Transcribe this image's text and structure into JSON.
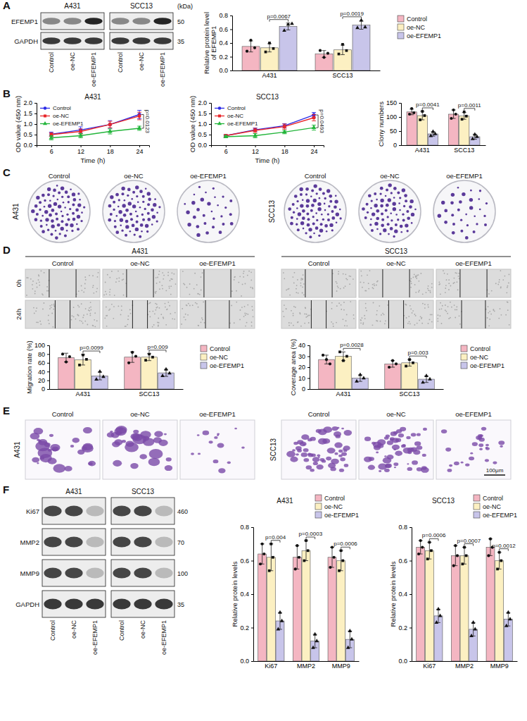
{
  "panel_labels": [
    "A",
    "B",
    "C",
    "D",
    "E",
    "F"
  ],
  "blot_A": {
    "cells": [
      "A431",
      "SCC13"
    ],
    "rows": [
      "EFEMP1",
      "GAPDH"
    ],
    "unit": "(kDa)",
    "markers": [
      50,
      35
    ],
    "lanes": [
      "Control",
      "oe-NC",
      "oe-EFEMP1"
    ]
  },
  "colony_C": {
    "cells": [
      "A431",
      "SCC13"
    ],
    "columns": [
      "Control",
      "oe-NC",
      "oe-EFEMP1"
    ]
  },
  "wound_D": {
    "cells": [
      "A431",
      "SCC13"
    ],
    "columns": [
      "Control",
      "oe-NC",
      "oe-EFEMP1"
    ],
    "rows": [
      "0h",
      "24h"
    ]
  },
  "transwell_E": {
    "cells": [
      "A431",
      "SCC13"
    ],
    "columns": [
      "Control",
      "oe-NC",
      "oe-EFEMP1"
    ],
    "scale_bar": "100μm"
  },
  "blot_F": {
    "cells": [
      "A431",
      "SCC13"
    ],
    "rows": [
      "Ki67",
      "MMP2",
      "MMP9",
      "GAPDH"
    ],
    "markers": [
      460,
      70,
      100,
      35
    ],
    "lanes": [
      "Control",
      "oe-NC",
      "oe-EFEMP1"
    ]
  },
  "chart_data": [
    {
      "type": "bar",
      "y_label": "Relative protein level of EFEMP1",
      "categories": [
        "A431",
        "SCC13"
      ],
      "ylim": [
        0,
        0.8
      ],
      "yticks": [
        {
          "value": 0,
          "label": "0.0"
        },
        0.2,
        0.4,
        0.6,
        0.8
      ],
      "legend": "right",
      "series": [
        {
          "name": "Control",
          "color": "#f4b6c2",
          "marker": "circle",
          "values": [
            0.35,
            0.24
          ],
          "errors": [
            0.08,
            0.05
          ],
          "points": [
            [
              0.28,
              0.44,
              0.33
            ],
            [
              0.29,
              0.19,
              0.25
            ]
          ]
        },
        {
          "name": "oe-NC",
          "color": "#fcf0c2",
          "marker": "square",
          "values": [
            0.33,
            0.3
          ],
          "errors": [
            0.06,
            0.07
          ],
          "points": [
            [
              0.27,
              0.4,
              0.32
            ],
            [
              0.24,
              0.38,
              0.29
            ]
          ]
        },
        {
          "name": "oe-EFEMP1",
          "color": "#c8c5ea",
          "marker": "triangle",
          "values": [
            0.64,
            0.66
          ],
          "errors": [
            0.05,
            0.06
          ],
          "points": [
            [
              0.58,
              0.67,
              0.68
            ],
            [
              0.62,
              0.73,
              0.63
            ]
          ]
        }
      ],
      "annotations": [
        "p=0.0067",
        "p=0.0019"
      ]
    },
    {
      "type": "line",
      "title": "A431",
      "x_label": "Time (h)",
      "y_label": "OD value (450 nm)",
      "x": [
        6,
        12,
        18,
        24
      ],
      "xlim": [
        3,
        26
      ],
      "xticks": [
        6,
        12,
        18,
        24
      ],
      "ylim": [
        0,
        2
      ],
      "yticks": [
        {
          "value": 0,
          "label": "0.0"
        },
        0.5,
        {
          "value": 1,
          "label": "1.0"
        },
        1.5,
        {
          "value": 2,
          "label": "2.0"
        }
      ],
      "legend": "upper left",
      "series": [
        {
          "name": "Control",
          "color": "#2a2ae6",
          "marker": "circle",
          "values": [
            0.52,
            0.72,
            0.98,
            1.45
          ],
          "errors": [
            0.1,
            0.15,
            0.18,
            0.2
          ]
        },
        {
          "name": "oe-NC",
          "color": "#e8262a",
          "marker": "square",
          "values": [
            0.5,
            0.65,
            0.98,
            1.38
          ],
          "errors": [
            0.08,
            0.12,
            0.15,
            0.18
          ]
        },
        {
          "name": "oe-EFEMP1",
          "color": "#22b53a",
          "marker": "triangle",
          "values": [
            0.35,
            0.45,
            0.65,
            0.8
          ],
          "errors": [
            0.1,
            0.1,
            0.12,
            0.1
          ]
        }
      ],
      "annotations": [
        "p=0.0123"
      ]
    },
    {
      "type": "line",
      "title": "SCC13",
      "x_label": "Time (h)",
      "y_label": "OD value (450 nm)",
      "x": [
        6,
        12,
        18,
        24
      ],
      "xlim": [
        3,
        26
      ],
      "xticks": [
        6,
        12,
        18,
        24
      ],
      "ylim": [
        0,
        2
      ],
      "yticks": [
        {
          "value": 0,
          "label": "0.0"
        },
        0.5,
        {
          "value": 1,
          "label": "1.0"
        },
        1.5,
        {
          "value": 2,
          "label": "2.0"
        }
      ],
      "legend": "upper left",
      "series": [
        {
          "name": "Control",
          "color": "#2a2ae6",
          "marker": "circle",
          "values": [
            0.45,
            0.73,
            0.92,
            1.43
          ],
          "errors": [
            0.05,
            0.08,
            0.1,
            0.12
          ]
        },
        {
          "name": "oe-NC",
          "color": "#e8262a",
          "marker": "square",
          "values": [
            0.45,
            0.7,
            0.88,
            1.3
          ],
          "errors": [
            0.05,
            0.1,
            0.12,
            0.15
          ]
        },
        {
          "name": "oe-EFEMP1",
          "color": "#22b53a",
          "marker": "triangle",
          "values": [
            0.4,
            0.45,
            0.62,
            0.83
          ],
          "errors": [
            0.05,
            0.1,
            0.08,
            0.12
          ]
        }
      ],
      "annotations": [
        "p=0.0493"
      ]
    },
    {
      "type": "bar",
      "y_label": "Clony numbers",
      "categories": [
        "A431",
        "SCC13"
      ],
      "ylim": [
        0,
        150
      ],
      "yticks": [
        0,
        50,
        100,
        150
      ],
      "series": [
        {
          "name": "Control",
          "color": "#f4b6c2",
          "marker": "circle",
          "values": [
            118,
            110
          ],
          "errors": [
            10,
            15
          ],
          "points": [
            [
              110,
              130,
              115
            ],
            [
              95,
              125,
              110
            ]
          ]
        },
        {
          "name": "oe-NC",
          "color": "#fcf0c2",
          "marker": "square",
          "values": [
            105,
            104
          ],
          "errors": [
            15,
            12
          ],
          "points": [
            [
              90,
              120,
              105
            ],
            [
              92,
              118,
              103
            ]
          ]
        },
        {
          "name": "oe-EFEMP1",
          "color": "#c8c5ea",
          "marker": "triangle",
          "values": [
            40,
            30
          ],
          "errors": [
            8,
            9
          ],
          "points": [
            [
              33,
              48,
              40
            ],
            [
              22,
              38,
              30
            ]
          ]
        }
      ],
      "annotations": [
        "p=0.0041",
        "p=0.0011"
      ]
    },
    {
      "type": "bar",
      "y_label": "Migration rate (%)",
      "categories": [
        "A431",
        "SCC13"
      ],
      "ylim": [
        0,
        100
      ],
      "yticks": [
        0,
        20,
        40,
        60,
        80,
        100
      ],
      "legend": "right",
      "series": [
        {
          "name": "Control",
          "color": "#f4b6c2",
          "marker": "circle",
          "values": [
            72,
            73
          ],
          "errors": [
            10,
            12
          ],
          "points": [
            [
              80,
              62,
              74
            ],
            [
              60,
              84,
              75
            ]
          ]
        },
        {
          "name": "oe-NC",
          "color": "#fcf0c2",
          "marker": "square",
          "values": [
            67,
            73
          ],
          "errors": [
            12,
            8
          ],
          "points": [
            [
              55,
              78,
              68
            ],
            [
              66,
              80,
              73
            ]
          ]
        },
        {
          "name": "oe-EFEMP1",
          "color": "#c8c5ea",
          "marker": "triangle",
          "values": [
            30,
            37
          ],
          "errors": [
            9,
            8
          ],
          "points": [
            [
              22,
              40,
              28
            ],
            [
              30,
              45,
              36
            ]
          ]
        }
      ],
      "annotations": [
        "p=0.0099",
        "p=0.009"
      ]
    },
    {
      "type": "bar",
      "y_label": "Coverage area (%)",
      "categories": [
        "A431",
        "SCC13"
      ],
      "ylim": [
        0,
        40
      ],
      "yticks": [
        0,
        10,
        20,
        30,
        40
      ],
      "legend": "right",
      "series": [
        {
          "name": "Control",
          "color": "#f4b6c2",
          "marker": "circle",
          "values": [
            27,
            23
          ],
          "errors": [
            4,
            3
          ],
          "points": [
            [
              31,
              27,
              23
            ],
            [
              20,
              26,
              23
            ]
          ]
        },
        {
          "name": "oe-NC",
          "color": "#fcf0c2",
          "marker": "square",
          "values": [
            30,
            24
          ],
          "errors": [
            4,
            3
          ],
          "points": [
            [
              34,
              26,
              30
            ],
            [
              21,
              27,
              24
            ]
          ]
        },
        {
          "name": "oe-EFEMP1",
          "color": "#c8c5ea",
          "marker": "triangle",
          "values": [
            10,
            9
          ],
          "errors": [
            3,
            3
          ],
          "points": [
            [
              7,
              13,
              10
            ],
            [
              6,
              12,
              9
            ]
          ]
        }
      ],
      "annotations": [
        "p=0.0028",
        "p=0.003"
      ]
    },
    {
      "type": "bar",
      "title": "A431",
      "y_label": "Relative protein levels",
      "categories": [
        "Ki67",
        "MMP2",
        "MMP9"
      ],
      "ylim": [
        0,
        0.8
      ],
      "yticks": [
        {
          "value": 0,
          "label": "0.0"
        },
        0.2,
        0.4,
        0.6,
        0.8
      ],
      "legend": "upper right",
      "series": [
        {
          "name": "Control",
          "color": "#f4b6c2",
          "marker": "circle",
          "values": [
            0.64,
            0.62,
            0.62
          ],
          "errors": [
            0.06,
            0.07,
            0.06
          ],
          "points": [
            [
              0.58,
              0.7,
              0.64
            ],
            [
              0.55,
              0.69,
              0.62
            ],
            [
              0.56,
              0.68,
              0.62
            ]
          ]
        },
        {
          "name": "oe-NC",
          "color": "#fcf0c2",
          "marker": "square",
          "values": [
            0.62,
            0.66,
            0.6
          ],
          "errors": [
            0.08,
            0.06,
            0.06
          ],
          "points": [
            [
              0.54,
              0.7,
              0.62
            ],
            [
              0.6,
              0.72,
              0.66
            ],
            [
              0.54,
              0.66,
              0.6
            ]
          ]
        },
        {
          "name": "oe-EFEMP1",
          "color": "#c8c5ea",
          "marker": "triangle",
          "values": [
            0.24,
            0.12,
            0.13
          ],
          "errors": [
            0.05,
            0.04,
            0.05
          ],
          "points": [
            [
              0.19,
              0.29,
              0.24
            ],
            [
              0.08,
              0.16,
              0.12
            ],
            [
              0.08,
              0.18,
              0.13
            ]
          ]
        }
      ],
      "annotations": [
        "p=0.004",
        "p=0.0003",
        "p=0.0006"
      ]
    },
    {
      "type": "bar",
      "title": "SCC13",
      "y_label": "Relative protein levels",
      "categories": [
        "Ki67",
        "MMP2",
        "MMP9"
      ],
      "ylim": [
        0,
        0.8
      ],
      "yticks": [
        {
          "value": 0,
          "label": "0.0"
        },
        0.2,
        0.4,
        0.6,
        0.8
      ],
      "legend": "upper right",
      "series": [
        {
          "name": "Control",
          "color": "#f4b6c2",
          "marker": "circle",
          "values": [
            0.68,
            0.63,
            0.68
          ],
          "errors": [
            0.04,
            0.06,
            0.05
          ],
          "points": [
            [
              0.64,
              0.72,
              0.68
            ],
            [
              0.57,
              0.69,
              0.63
            ],
            [
              0.63,
              0.73,
              0.68
            ]
          ]
        },
        {
          "name": "oe-NC",
          "color": "#fcf0c2",
          "marker": "square",
          "values": [
            0.66,
            0.63,
            0.6
          ],
          "errors": [
            0.05,
            0.05,
            0.05
          ],
          "points": [
            [
              0.61,
              0.71,
              0.66
            ],
            [
              0.58,
              0.68,
              0.63
            ],
            [
              0.55,
              0.65,
              0.6
            ]
          ]
        },
        {
          "name": "oe-EFEMP1",
          "color": "#c8c5ea",
          "marker": "triangle",
          "values": [
            0.27,
            0.19,
            0.25
          ],
          "errors": [
            0.04,
            0.04,
            0.04
          ],
          "points": [
            [
              0.23,
              0.31,
              0.27
            ],
            [
              0.15,
              0.23,
              0.19
            ],
            [
              0.21,
              0.29,
              0.25
            ]
          ]
        }
      ],
      "annotations": [
        "p=0.0006",
        "p=0.0007",
        "p=0.0012"
      ]
    }
  ]
}
